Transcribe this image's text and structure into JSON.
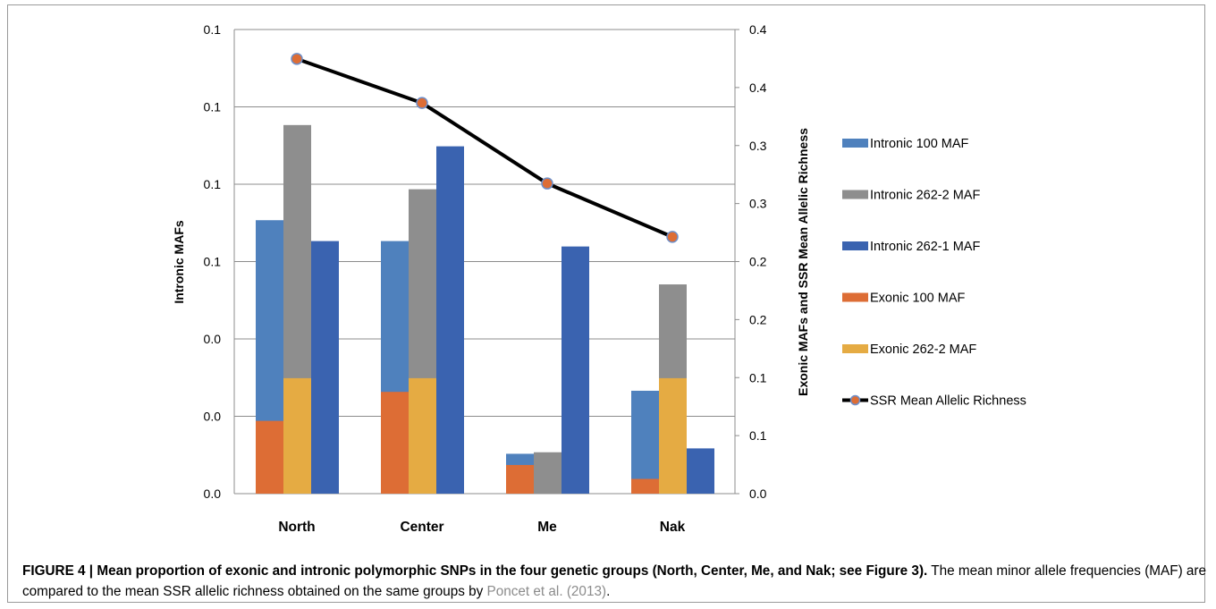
{
  "chart_data": {
    "type": "bar",
    "categories": [
      "North",
      "Center",
      "Me",
      "Nak"
    ],
    "ylabel_left": "Intronic MAFs",
    "ylabel_right": "Exonic MAFs and SSR Mean Allelic Richness",
    "left_ticks": [
      "0.0",
      "0.0",
      "0.0",
      "0.1",
      "0.1",
      "0.1",
      "0.1"
    ],
    "right_ticks": [
      "0.0",
      "0.1",
      "0.1",
      "0.2",
      "0.2",
      "0.3",
      "0.3",
      "0.4",
      "0.4"
    ],
    "ylim_left": [
      0,
      0.12
    ],
    "ylim_right": [
      0,
      0.4
    ],
    "grid": true,
    "legend_position": "right",
    "series": [
      {
        "name": "Intronic 100 MAF",
        "axis": "left",
        "type": "bar",
        "color": "#4f81bd",
        "values": [
          0.0707,
          0.0653,
          0.0103,
          0.0266
        ]
      },
      {
        "name": "Intronic 262-2 MAF",
        "axis": "left",
        "type": "bar",
        "color": "#8e8e8e",
        "values": [
          0.0953,
          0.0787,
          0.0107,
          0.0541
        ]
      },
      {
        "name": "Intronic 262-1 MAF",
        "axis": "left",
        "type": "bar",
        "color": "#3a63b0",
        "values": [
          0.0653,
          0.0898,
          0.0639,
          0.0117
        ]
      },
      {
        "name": "Exonic 100 MAF",
        "axis": "right",
        "type": "bar",
        "color": "#dd6d35",
        "values": [
          0.0627,
          0.0877,
          0.0247,
          0.0127
        ]
      },
      {
        "name": "Exonic 262-2 MAF",
        "axis": "right",
        "type": "bar",
        "color": "#e5ab43",
        "values": [
          0.0995,
          0.0995,
          0.0,
          0.0995
        ]
      },
      {
        "name": "SSR Mean Allelic Richness",
        "axis": "right",
        "type": "line",
        "color": "#000000",
        "marker_color": "#dd6d35",
        "marker_edge": "#6e8fc9",
        "values": [
          0.3747,
          0.3367,
          0.2673,
          0.2213
        ]
      }
    ]
  },
  "caption": {
    "label": "FIGURE 4 | Mean proportion of exonic and intronic polymorphic SNPs in the four genetic groups (North, Center, Me, and Nak; see Figure 3).",
    "text": " The mean minor allele frequencies (MAF) are compared to the mean SSR allelic richness obtained on the same groups by ",
    "citation": "Poncet et al. (2013)",
    "end": "."
  }
}
